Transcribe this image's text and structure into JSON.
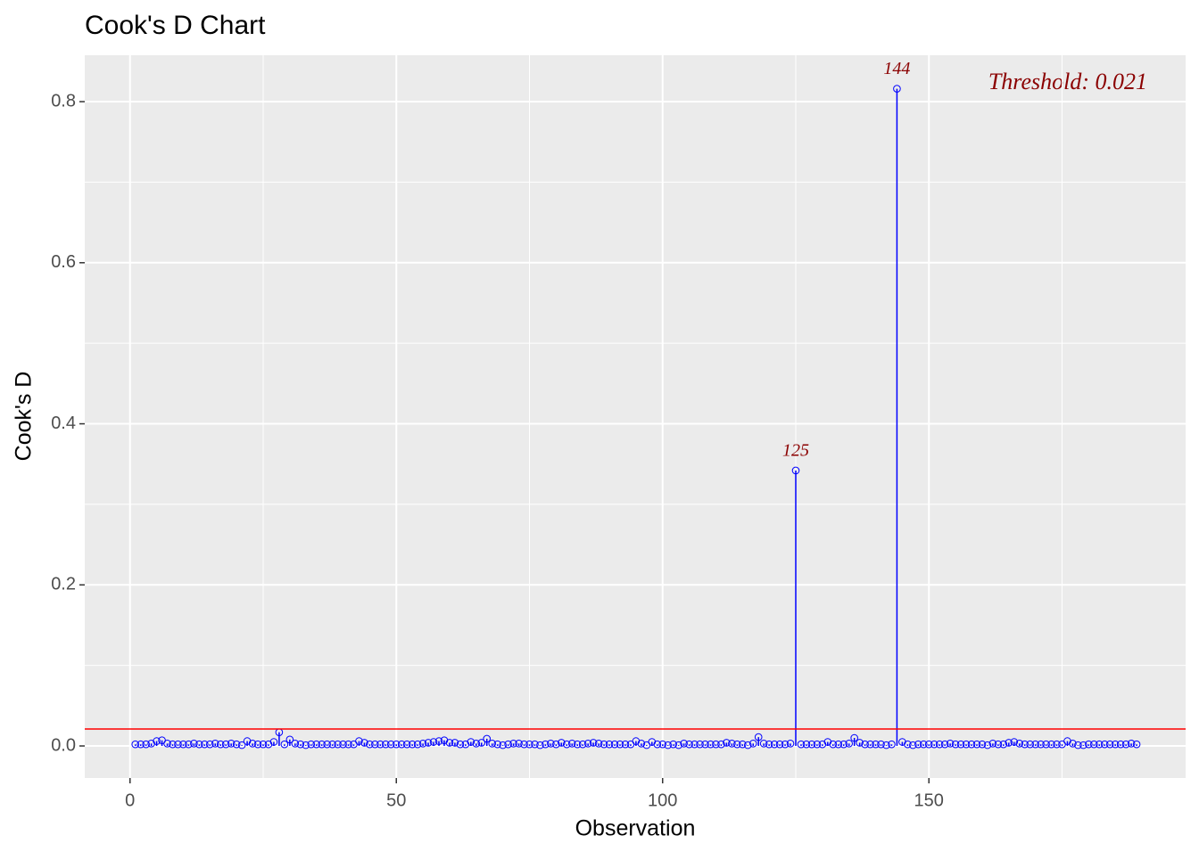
{
  "chart_data": {
    "type": "stem",
    "title": "Cook's D Chart",
    "x_label": "Observation",
    "y_label": "Cook's D",
    "x": [
      1,
      2,
      3,
      4,
      5,
      6,
      7,
      8,
      9,
      10,
      11,
      12,
      13,
      14,
      15,
      16,
      17,
      18,
      19,
      20,
      21,
      22,
      23,
      24,
      25,
      26,
      27,
      28,
      29,
      30,
      31,
      32,
      33,
      34,
      35,
      36,
      37,
      38,
      39,
      40,
      41,
      42,
      43,
      44,
      45,
      46,
      47,
      48,
      49,
      50,
      51,
      52,
      53,
      54,
      55,
      56,
      57,
      58,
      59,
      60,
      61,
      62,
      63,
      64,
      65,
      66,
      67,
      68,
      69,
      70,
      71,
      72,
      73,
      74,
      75,
      76,
      77,
      78,
      79,
      80,
      81,
      82,
      83,
      84,
      85,
      86,
      87,
      88,
      89,
      90,
      91,
      92,
      93,
      94,
      95,
      96,
      97,
      98,
      99,
      100,
      101,
      102,
      103,
      104,
      105,
      106,
      107,
      108,
      109,
      110,
      111,
      112,
      113,
      114,
      115,
      116,
      117,
      118,
      119,
      120,
      121,
      122,
      123,
      124,
      125,
      126,
      127,
      128,
      129,
      130,
      131,
      132,
      133,
      134,
      135,
      136,
      137,
      138,
      139,
      140,
      141,
      142,
      143,
      144,
      145,
      146,
      147,
      148,
      149,
      150,
      151,
      152,
      153,
      154,
      155,
      156,
      157,
      158,
      159,
      160,
      161,
      162,
      163,
      164,
      165,
      166,
      167,
      168,
      169,
      170,
      171,
      172,
      173,
      174,
      175,
      176,
      177,
      178,
      179,
      180,
      181,
      182,
      183,
      184,
      185,
      186,
      187,
      188,
      189
    ],
    "values": [
      0.002,
      0.002,
      0.002,
      0.003,
      0.006,
      0.007,
      0.003,
      0.002,
      0.002,
      0.002,
      0.002,
      0.003,
      0.002,
      0.002,
      0.002,
      0.003,
      0.002,
      0.002,
      0.003,
      0.002,
      0.001,
      0.006,
      0.003,
      0.002,
      0.002,
      0.002,
      0.005,
      0.017,
      0.002,
      0.008,
      0.003,
      0.002,
      0.001,
      0.002,
      0.002,
      0.002,
      0.002,
      0.002,
      0.002,
      0.002,
      0.002,
      0.002,
      0.006,
      0.004,
      0.002,
      0.002,
      0.002,
      0.002,
      0.002,
      0.002,
      0.002,
      0.002,
      0.002,
      0.002,
      0.003,
      0.004,
      0.005,
      0.006,
      0.007,
      0.004,
      0.004,
      0.002,
      0.002,
      0.005,
      0.003,
      0.004,
      0.009,
      0.003,
      0.002,
      0.001,
      0.002,
      0.003,
      0.003,
      0.002,
      0.002,
      0.002,
      0.001,
      0.002,
      0.003,
      0.002,
      0.004,
      0.002,
      0.003,
      0.002,
      0.002,
      0.003,
      0.004,
      0.003,
      0.002,
      0.002,
      0.002,
      0.002,
      0.002,
      0.002,
      0.006,
      0.003,
      0.001,
      0.005,
      0.002,
      0.002,
      0.001,
      0.002,
      0.001,
      0.003,
      0.002,
      0.002,
      0.002,
      0.002,
      0.002,
      0.002,
      0.002,
      0.004,
      0.003,
      0.002,
      0.002,
      0.001,
      0.003,
      0.011,
      0.003,
      0.002,
      0.002,
      0.002,
      0.002,
      0.003,
      0.342,
      0.002,
      0.002,
      0.002,
      0.002,
      0.002,
      0.005,
      0.002,
      0.002,
      0.002,
      0.003,
      0.01,
      0.004,
      0.002,
      0.002,
      0.002,
      0.002,
      0.001,
      0.002,
      0.816,
      0.005,
      0.002,
      0.001,
      0.002,
      0.002,
      0.002,
      0.002,
      0.002,
      0.002,
      0.003,
      0.002,
      0.002,
      0.002,
      0.002,
      0.002,
      0.002,
      0.001,
      0.003,
      0.002,
      0.002,
      0.004,
      0.005,
      0.003,
      0.002,
      0.002,
      0.002,
      0.002,
      0.002,
      0.002,
      0.002,
      0.002,
      0.006,
      0.003,
      0.001,
      0.001,
      0.002,
      0.002,
      0.002,
      0.002,
      0.002,
      0.002,
      0.002,
      0.002,
      0.003,
      0.002
    ],
    "color": "#0000ff",
    "threshold": 0.021,
    "threshold_color": "#ff0000",
    "annotation": "Threshold: 0.021",
    "label_color": "#8b0000",
    "xlim": [
      -8.5,
      198.2
    ],
    "ylim": [
      -0.0398,
      0.8576
    ],
    "xticks": [
      0,
      50,
      100,
      150
    ],
    "yticks": [
      {
        "value": 0,
        "label": "0.0"
      },
      0.2,
      0.4,
      0.6,
      0.8
    ],
    "xminor": [
      25,
      75,
      125,
      175
    ],
    "yminor": [
      0.1,
      0.3,
      0.5,
      0.7
    ],
    "grid": true
  }
}
